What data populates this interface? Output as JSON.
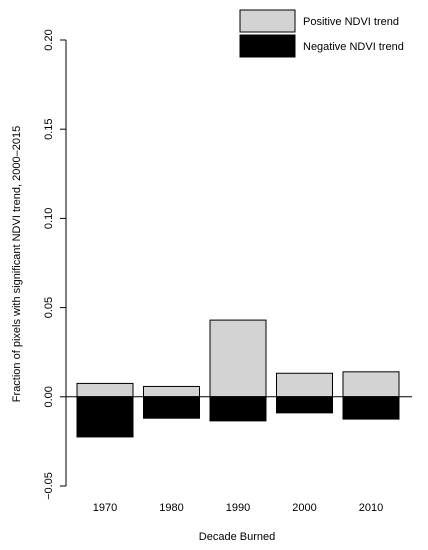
{
  "chart_data": {
    "type": "bar",
    "stacked": "diverging",
    "categories": [
      "1970",
      "1980",
      "1990",
      "2000",
      "2010"
    ],
    "series": [
      {
        "name": "Positive NDVI trend",
        "color": "#d3d3d3",
        "values": [
          0.0075,
          0.0058,
          0.043,
          0.0132,
          0.014
        ]
      },
      {
        "name": "Negative NDVI trend",
        "color": "#000000",
        "values": [
          -0.0225,
          -0.012,
          -0.0135,
          -0.009,
          -0.0125
        ]
      }
    ],
    "xlabel": "Decade Burned",
    "ylabel": "Fraction of pixels with significant NDVI trend, 2000–2015",
    "ylim": [
      -0.05,
      0.2
    ],
    "yticks": [
      -0.05,
      0.0,
      0.05,
      0.1,
      0.15,
      0.2
    ],
    "ytick_labels": [
      "−0.05",
      "0.00",
      "0.05",
      "0.10",
      "0.15",
      "0.20"
    ],
    "zero_line": true,
    "grid": false,
    "legend_position": "top-right"
  }
}
